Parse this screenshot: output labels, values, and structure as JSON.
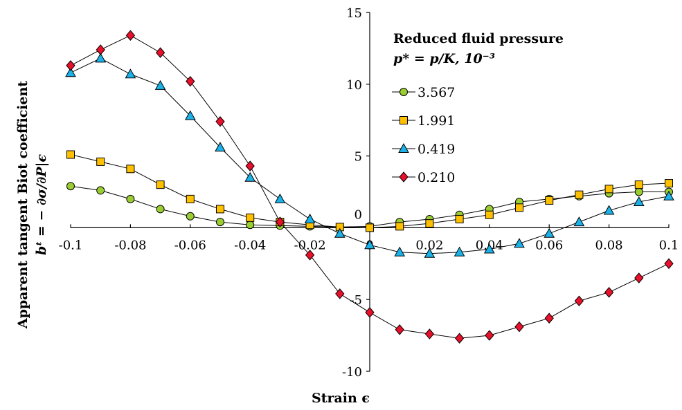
{
  "chart_data": {
    "type": "line",
    "xlabel": "Strain ϵ",
    "ylabel_line1": "Apparent tangent Biot coefficient",
    "ylabel_line2": "bᵗ = − ∂σ/∂P|ϵ",
    "xlim": [
      -0.1,
      0.1
    ],
    "ylim": [
      -10,
      15
    ],
    "x_ticks": [
      -0.1,
      -0.08,
      -0.06,
      -0.04,
      -0.02,
      0,
      0.02,
      0.04,
      0.06,
      0.08,
      0.1
    ],
    "x_tick_labels": [
      "-0.1",
      "-0.08",
      "-0.06",
      "-0.04",
      "-0.02",
      "0",
      "0.02",
      "0.04",
      "0.06",
      "0.08",
      "0.1"
    ],
    "y_ticks": [
      -10,
      -5,
      0,
      5,
      10,
      15
    ],
    "y_tick_labels": [
      "-10",
      "-5",
      "0",
      "5",
      "10",
      "15"
    ],
    "grid": false,
    "legend_title_line1": "Reduced fluid pressure",
    "legend_title_line2": "p* = p/K, 10⁻³",
    "legend_position": "top-right",
    "x": [
      -0.1,
      -0.09,
      -0.08,
      -0.07,
      -0.06,
      -0.05,
      -0.04,
      -0.03,
      -0.02,
      -0.01,
      0,
      0.01,
      0.02,
      0.03,
      0.04,
      0.05,
      0.06,
      0.07,
      0.08,
      0.09,
      0.1
    ],
    "series": [
      {
        "name": "3.567",
        "marker": "circle",
        "color": "#9acd32",
        "values": [
          2.9,
          2.6,
          2.0,
          1.3,
          0.8,
          0.4,
          0.2,
          0.15,
          0.1,
          0.05,
          0.1,
          0.4,
          0.6,
          0.9,
          1.3,
          1.8,
          2.0,
          2.2,
          2.4,
          2.5,
          2.5
        ]
      },
      {
        "name": "1.991",
        "marker": "square",
        "color": "#ffc000",
        "values": [
          5.1,
          4.6,
          4.1,
          3.0,
          2.0,
          1.3,
          0.7,
          0.4,
          0.2,
          0.05,
          0.0,
          0.1,
          0.3,
          0.6,
          0.9,
          1.4,
          1.9,
          2.3,
          2.7,
          3.0,
          3.1
        ]
      },
      {
        "name": "0.419",
        "marker": "triangle",
        "color": "#1ab2e8",
        "values": [
          10.8,
          11.8,
          10.7,
          9.9,
          7.8,
          5.6,
          3.5,
          2.0,
          0.6,
          -0.4,
          -1.2,
          -1.7,
          -1.8,
          -1.7,
          -1.5,
          -1.1,
          -0.4,
          0.4,
          1.2,
          1.8,
          2.2
        ]
      },
      {
        "name": "0.210",
        "marker": "diamond",
        "color": "#e8102a",
        "values": [
          11.3,
          12.4,
          13.4,
          12.2,
          10.2,
          7.4,
          4.3,
          0.4,
          -1.9,
          -4.6,
          -5.9,
          -7.1,
          -7.4,
          -7.7,
          -7.5,
          -6.9,
          -6.3,
          -5.1,
          -4.5,
          -3.5,
          -2.5
        ]
      }
    ]
  }
}
